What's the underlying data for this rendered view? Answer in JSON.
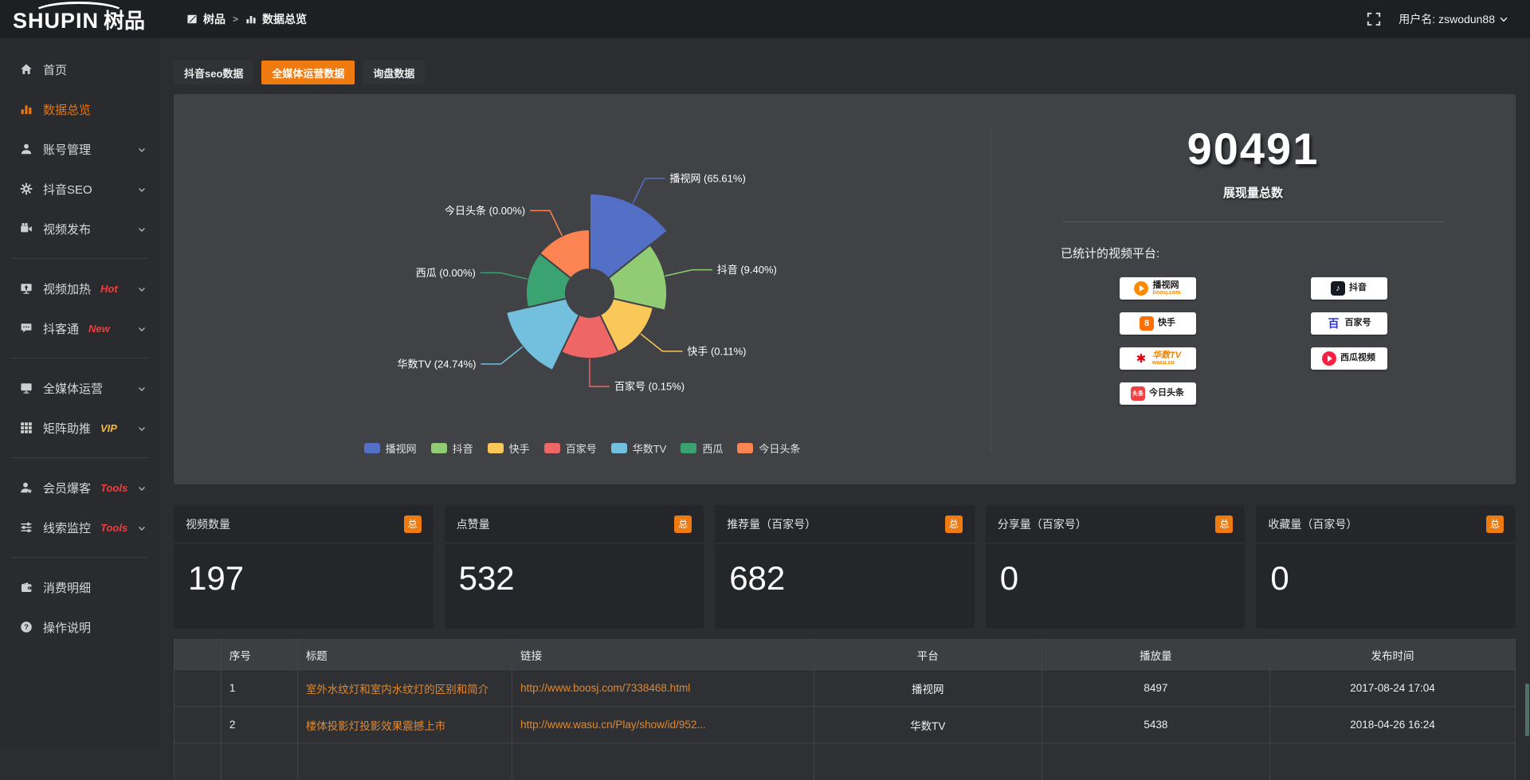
{
  "colors": {
    "accent": "#ef7b10",
    "sidebar_active": "#e8770f",
    "link_orange": "#e2882f",
    "tag_red": "#f03e3e",
    "tag_gold": "#f5b83d"
  },
  "topbar": {
    "logo_en": "SHUPIN",
    "logo_cn": "树品",
    "breadcrumb_root": "树品",
    "breadcrumb_separator": ">",
    "breadcrumb_current": "数据总览",
    "username_label": "用户名:",
    "username": "zswodun88"
  },
  "sidebar": {
    "items": [
      {
        "id": "home",
        "label": "首页",
        "icon": "home-icon"
      },
      {
        "id": "data-overview",
        "label": "数据总览",
        "icon": "chart-icon",
        "active": true
      },
      {
        "id": "account-manage",
        "label": "账号管理",
        "icon": "user-icon",
        "expandable": true
      },
      {
        "id": "douyin-seo",
        "label": "抖音SEO",
        "icon": "gear-icon",
        "expandable": true
      },
      {
        "id": "video-publish",
        "label": "视频发布",
        "icon": "video-icon",
        "expandable": true
      },
      {
        "divider": true
      },
      {
        "id": "video-heat",
        "label": "视频加热",
        "icon": "heat-icon",
        "tag": "Hot",
        "tag_color": "#f03e3e",
        "expandable": true
      },
      {
        "id": "douketong",
        "label": "抖客通",
        "icon": "chat-icon",
        "tag": "New",
        "tag_color": "#f03e3e",
        "expandable": true
      },
      {
        "divider": true
      },
      {
        "id": "omni-media",
        "label": "全媒体运营",
        "icon": "monitor-icon",
        "expandable": true
      },
      {
        "id": "matrix-boost",
        "label": "矩阵助推",
        "icon": "grid-icon",
        "tag": "VIP",
        "tag_color": "#f5b83d",
        "expandable": true
      },
      {
        "divider": true
      },
      {
        "id": "member-burst",
        "label": "会员爆客",
        "icon": "member-icon",
        "tag": "Tools",
        "tag_color": "#f03e3e",
        "expandable": true
      },
      {
        "id": "lead-monitor",
        "label": "线索监控",
        "icon": "sliders-icon",
        "tag": "Tools",
        "tag_color": "#f03e3e",
        "expandable": true
      },
      {
        "divider": true
      },
      {
        "id": "expense-detail",
        "label": "消费明细",
        "icon": "wallet-icon"
      },
      {
        "id": "help-guide",
        "label": "操作说明",
        "icon": "help-icon"
      }
    ]
  },
  "tabs": [
    {
      "label": "抖音seo数据",
      "active": false
    },
    {
      "label": "全媒体运营数据",
      "active": true
    },
    {
      "label": "询盘数据",
      "active": false
    }
  ],
  "chart_data": {
    "type": "pie",
    "variant": "nightingale-rose-donut",
    "legend_position": "bottom",
    "labels": [
      "播视网",
      "抖音",
      "快手",
      "百家号",
      "华数TV",
      "西瓜",
      "今日头条"
    ],
    "values_percent": [
      65.61,
      9.4,
      0.11,
      0.15,
      24.74,
      0.0,
      0.0
    ],
    "colors": [
      "#5470c6",
      "#91cc75",
      "#fac858",
      "#ee6666",
      "#73c0de",
      "#3ba272",
      "#fc8452"
    ],
    "label_format": "{name} ({value}%)"
  },
  "summary": {
    "total_value": "90491",
    "total_label": "展现量总数",
    "platforms_label": "已统计的视频平台:",
    "platforms": [
      {
        "name": "播视网",
        "sub": "boosj.com",
        "column": "left",
        "brand_color": "#ff8a00",
        "icon": "boosj-drop-icon"
      },
      {
        "name": "快手",
        "column": "left",
        "brand_color": "#ff6f00",
        "icon": "kuaishou-icon",
        "glyph": "8"
      },
      {
        "name": "华数TV",
        "sub": "wasu.cn",
        "column": "left",
        "brand_color": "#e60012",
        "icon": "wasu-burst-icon",
        "name_color": "#f08300",
        "glyph": "✱"
      },
      {
        "name": "今日头条",
        "column": "left",
        "brand_color": "#f04142",
        "icon": "toutiao-icon",
        "glyph": "头条"
      },
      {
        "name": "抖音",
        "column": "right",
        "brand_color": "#161823",
        "icon": "douyin-note-icon",
        "glyph": "♪"
      },
      {
        "name": "百家号",
        "column": "right",
        "brand_color": "#2932e1",
        "icon": "baijiahao-icon",
        "glyph": "百"
      },
      {
        "name": "西瓜视频",
        "column": "right",
        "brand_color": "#fa1f41",
        "icon": "xigua-play-icon"
      }
    ]
  },
  "stat_cards": [
    {
      "label": "视频数量",
      "badge": "总",
      "value": "197"
    },
    {
      "label": "点赞量",
      "badge": "总",
      "value": "532"
    },
    {
      "label": "推荐量（百家号）",
      "badge": "总",
      "value": "682"
    },
    {
      "label": "分享量（百家号）",
      "badge": "总",
      "value": "0"
    },
    {
      "label": "收藏量（百家号）",
      "badge": "总",
      "value": "0"
    }
  ],
  "table": {
    "headers": [
      "序号",
      "标题",
      "链接",
      "平台",
      "播放量",
      "发布时间"
    ],
    "rows": [
      {
        "index": "1",
        "title": "室外水纹灯和室内水纹灯的区别和简介",
        "link": "http://www.boosj.com/7338468.html",
        "platform": "播视网",
        "views": "8497",
        "time": "2017-08-24 17:04"
      },
      {
        "index": "2",
        "title": "楼体投影灯投影效果震撼上市",
        "link": "http://www.wasu.cn/Play/show/id/952...",
        "platform": "华数TV",
        "views": "5438",
        "time": "2018-04-26 16:24"
      }
    ]
  }
}
